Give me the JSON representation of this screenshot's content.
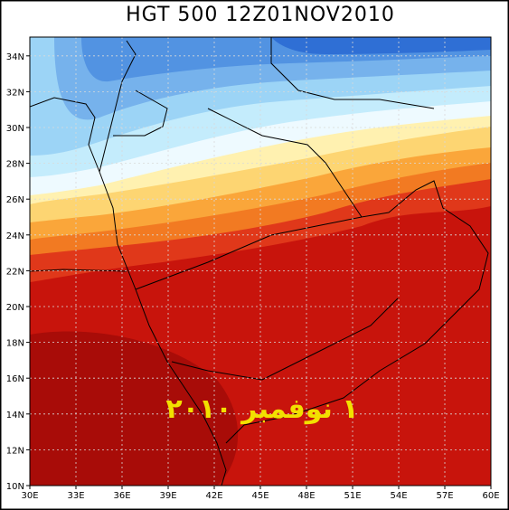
{
  "title": "HGT 500 12Z01NOV2010",
  "lat_labels": [
    "10N",
    "12N",
    "14N",
    "16N",
    "18N",
    "20N",
    "22N",
    "24N",
    "26N",
    "28N",
    "30N",
    "32N",
    "34N"
  ],
  "lon_labels": [
    "30E",
    "33E",
    "36E",
    "39E",
    "42E",
    "45E",
    "48E",
    "51E",
    "54E",
    "57E",
    "60E"
  ],
  "annotation": "١ نوفمبر ٢٠١٠"
}
